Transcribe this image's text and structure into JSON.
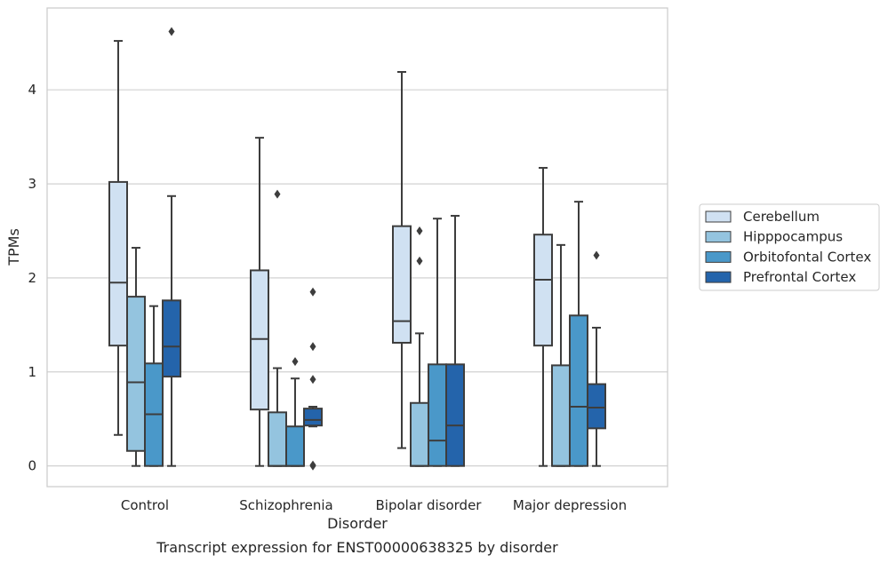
{
  "chart_data": {
    "type": "box",
    "title": "Transcript expression for ENST00000638325 by disorder",
    "xlabel": "Disorder",
    "ylabel": "TPMs",
    "ylim": [
      -0.22,
      4.87
    ],
    "yticks": [
      0,
      1,
      2,
      3,
      4
    ],
    "grid": "horizontal",
    "legend_position": "right",
    "categories": [
      "Control",
      "Schizophrenia",
      "Bipolar disorder",
      "Major depression"
    ],
    "series": [
      {
        "name": "Cerebellum",
        "color": "#d0e1f2",
        "boxes": [
          {
            "whisker_low": 0.33,
            "q1": 1.28,
            "median": 1.95,
            "q3": 3.02,
            "whisker_high": 4.52,
            "outliers": []
          },
          {
            "whisker_low": 0.0,
            "q1": 0.6,
            "median": 1.35,
            "q3": 2.08,
            "whisker_high": 3.49,
            "outliers": []
          },
          {
            "whisker_low": 0.19,
            "q1": 1.31,
            "median": 1.54,
            "q3": 2.55,
            "whisker_high": 4.19,
            "outliers": []
          },
          {
            "whisker_low": 0.0,
            "q1": 1.28,
            "median": 1.98,
            "q3": 2.46,
            "whisker_high": 3.17,
            "outliers": []
          }
        ]
      },
      {
        "name": "Hipppocampus",
        "color": "#94c4df",
        "boxes": [
          {
            "whisker_low": 0.0,
            "q1": 0.16,
            "median": 0.89,
            "q3": 1.8,
            "whisker_high": 2.32,
            "outliers": []
          },
          {
            "whisker_low": 0.0,
            "q1": 0.0,
            "median": 0.0,
            "q3": 0.57,
            "whisker_high": 1.04,
            "outliers": [
              2.89
            ]
          },
          {
            "whisker_low": 0.0,
            "q1": 0.0,
            "median": 0.0,
            "q3": 0.67,
            "whisker_high": 1.41,
            "outliers": [
              2.18,
              2.5
            ]
          },
          {
            "whisker_low": 0.0,
            "q1": 0.0,
            "median": 0.0,
            "q3": 1.07,
            "whisker_high": 2.35,
            "outliers": []
          }
        ]
      },
      {
        "name": "Orbitofontal Cortex",
        "color": "#4a98c9",
        "boxes": [
          {
            "whisker_low": 0.0,
            "q1": 0.0,
            "median": 0.55,
            "q3": 1.09,
            "whisker_high": 1.7,
            "outliers": []
          },
          {
            "whisker_low": 0.0,
            "q1": 0.0,
            "median": 0.0,
            "q3": 0.42,
            "whisker_high": 0.93,
            "outliers": [
              1.11
            ]
          },
          {
            "whisker_low": 0.0,
            "q1": 0.0,
            "median": 0.27,
            "q3": 1.08,
            "whisker_high": 2.63,
            "outliers": []
          },
          {
            "whisker_low": 0.0,
            "q1": 0.0,
            "median": 0.63,
            "q3": 1.6,
            "whisker_high": 2.81,
            "outliers": []
          }
        ]
      },
      {
        "name": "Prefrontal Cortex",
        "color": "#2464ab",
        "boxes": [
          {
            "whisker_low": 0.0,
            "q1": 0.95,
            "median": 1.27,
            "q3": 1.76,
            "whisker_high": 2.87,
            "outliers": [
              4.62
            ]
          },
          {
            "whisker_low": 0.42,
            "q1": 0.43,
            "median": 0.49,
            "q3": 0.61,
            "whisker_high": 0.63,
            "outliers": [
              0.0,
              0.01,
              0.92,
              1.27,
              1.85
            ]
          },
          {
            "whisker_low": 0.0,
            "q1": 0.0,
            "median": 0.43,
            "q3": 1.08,
            "whisker_high": 2.66,
            "outliers": []
          },
          {
            "whisker_low": 0.0,
            "q1": 0.4,
            "median": 0.62,
            "q3": 0.87,
            "whisker_high": 1.47,
            "outliers": [
              2.24
            ]
          }
        ]
      }
    ]
  }
}
